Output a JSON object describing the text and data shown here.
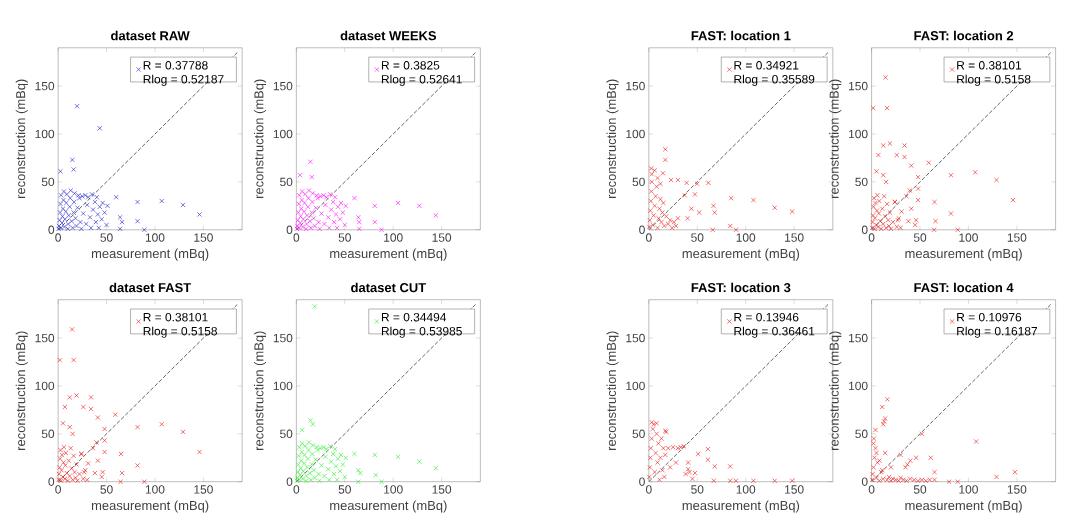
{
  "chart_data": [
    {
      "type": "scatter",
      "title": "dataset RAW",
      "xlabel": "measurement (mBq)",
      "ylabel": "reconstruction (mBq)",
      "xlim": [
        0,
        190
      ],
      "ylim": [
        0,
        190
      ],
      "xticks": [
        0,
        50,
        100,
        150
      ],
      "yticks": [
        0,
        50,
        100,
        150
      ],
      "legend": "top right",
      "series": [
        {
          "name": "R = 0.37788 Rlog = 0.52187",
          "color": "#1a1acc",
          "marker": "cross",
          "x": [
            0.5,
            1,
            1.5,
            2,
            2.5,
            3,
            3,
            4,
            4.5,
            5,
            5.5,
            6,
            6.5,
            7,
            8,
            8.5,
            9,
            10,
            10.5,
            11,
            12,
            12.5,
            13,
            14,
            15,
            16,
            16.5,
            17,
            18,
            19,
            20,
            21,
            22,
            23,
            24,
            25,
            26,
            28,
            29,
            30,
            31,
            33,
            34,
            35,
            36,
            38,
            39,
            40,
            41,
            42,
            43,
            45,
            46,
            48,
            50,
            51,
            2.4,
            14.7,
            16,
            19.6,
            43,
            60,
            64,
            64,
            66,
            82,
            82,
            89,
            107,
            129,
            146
          ],
          "values": [
            1,
            4,
            10,
            18,
            27,
            36,
            2,
            7,
            14,
            22,
            31,
            40,
            3,
            11,
            19,
            28,
            37,
            1,
            6,
            15,
            24,
            33,
            41,
            9,
            2,
            18,
            29,
            38,
            12,
            4,
            23,
            36,
            33,
            8,
            1,
            35,
            17,
            36,
            6,
            26,
            34,
            13,
            2,
            37,
            21,
            29,
            8,
            34,
            16,
            2,
            24,
            11,
            28,
            18,
            5,
            25,
            61,
            73,
            63,
            129,
            106,
            34,
            13,
            1,
            8,
            29,
            9,
            0,
            30,
            26,
            16
          ]
        },
        {
          "type": "line",
          "color": "#404040",
          "line_style": "dashed",
          "x": [
            0,
            185
          ],
          "values": [
            0,
            185
          ]
        }
      ]
    },
    {
      "type": "scatter",
      "title": "dataset WEEKS",
      "xlabel": "measurement (mBq)",
      "ylabel": "reconstruction (mBq)",
      "xlim": [
        0,
        190
      ],
      "ylim": [
        0,
        190
      ],
      "xticks": [
        0,
        50,
        100,
        150
      ],
      "yticks": [
        0,
        50,
        100,
        150
      ],
      "legend": "top right",
      "series": [
        {
          "name": "R = 0.3825 Rlog = 0.52641",
          "color": "#ff00ff",
          "marker": "cross",
          "x": [
            0.5,
            1,
            1.5,
            2,
            2.5,
            3,
            3,
            4,
            4.5,
            5,
            5.5,
            6,
            6.5,
            7,
            8,
            8.5,
            9,
            10,
            10.5,
            11,
            12,
            12.5,
            13,
            14,
            15,
            16,
            16.5,
            17,
            18,
            19,
            20,
            21,
            22,
            23,
            24,
            25,
            26,
            28,
            29,
            30,
            31,
            33,
            34,
            35,
            36,
            38,
            39,
            40,
            41,
            42,
            43,
            45,
            46,
            48,
            50,
            51,
            3.7,
            14.5,
            16,
            60,
            64,
            65,
            65,
            81,
            81,
            88,
            105,
            127,
            144
          ],
          "values": [
            1,
            4,
            10,
            18,
            27,
            36,
            2,
            7,
            14,
            22,
            31,
            40,
            3,
            11,
            19,
            28,
            37,
            1,
            6,
            15,
            24,
            33,
            41,
            9,
            2,
            18,
            29,
            38,
            12,
            4,
            23,
            36,
            33,
            8,
            1,
            35,
            17,
            36,
            6,
            26,
            34,
            13,
            2,
            37,
            21,
            29,
            8,
            34,
            16,
            2,
            24,
            11,
            28,
            18,
            5,
            25,
            57,
            71,
            55,
            33,
            13,
            8,
            1,
            25,
            8,
            0,
            28,
            25,
            15
          ]
        },
        {
          "type": "line",
          "color": "#404040",
          "line_style": "dashed",
          "x": [
            0,
            185
          ],
          "values": [
            0,
            185
          ]
        }
      ]
    },
    {
      "type": "scatter",
      "title": "FAST: location 1",
      "xlabel": "measurement (mBq)",
      "ylabel": "reconstruction (mBq)",
      "xlim": [
        0,
        190
      ],
      "ylim": [
        0,
        190
      ],
      "xticks": [
        0,
        50,
        100,
        150
      ],
      "yticks": [
        0,
        50,
        100,
        150
      ],
      "legend": "top right",
      "series": [
        {
          "name": "R = 0.34921 Rlog = 0.35589",
          "color": "#ee1111",
          "marker": "cross",
          "x": [
            0.5,
            1,
            1.5,
            2,
            2.5,
            3,
            4,
            5,
            6,
            7,
            8,
            9,
            10,
            11,
            12,
            13,
            14,
            15,
            16,
            18,
            20,
            22,
            24,
            26,
            28,
            30,
            3,
            6,
            9,
            12,
            17,
            17,
            2.4,
            14.6,
            23,
            30,
            39,
            50,
            61.5,
            85,
            108,
            130,
            148,
            66.7,
            68,
            84,
            90,
            66,
            47.6,
            37,
            44,
            52,
            40
          ],
          "values": [
            3,
            10,
            20,
            30,
            40,
            50,
            5,
            15,
            25,
            35,
            45,
            2,
            12,
            22,
            32,
            8,
            18,
            28,
            4,
            14,
            6,
            10,
            2,
            8,
            4,
            12,
            58,
            62,
            54,
            48,
            84,
            73,
            64,
            59,
            52,
            52,
            49,
            48,
            49,
            33,
            31,
            23,
            19,
            25,
            18,
            4,
            0,
            0,
            37,
            36,
            22,
            18,
            12
          ]
        },
        {
          "type": "line",
          "color": "#404040",
          "line_style": "dashed",
          "x": [
            0,
            185
          ],
          "values": [
            0,
            185
          ]
        }
      ]
    },
    {
      "type": "scatter",
      "title": "FAST: location 2",
      "xlabel": "measurement (mBq)",
      "ylabel": "reconstruction (mBq)",
      "xlim": [
        0,
        190
      ],
      "ylim": [
        0,
        190
      ],
      "xticks": [
        0,
        50,
        100,
        150
      ],
      "yticks": [
        0,
        50,
        100,
        150
      ],
      "legend": "top right",
      "series": [
        {
          "name": "R = 0.38101 Rlog = 0.5158",
          "color": "#ee1111",
          "marker": "cross",
          "x": [
            0.5,
            1,
            1.5,
            2,
            2.5,
            3,
            3.5,
            4,
            5,
            5.5,
            6,
            7,
            7.5,
            8,
            9,
            10,
            11,
            12,
            13,
            14,
            15,
            16,
            17,
            18,
            19,
            20,
            22,
            24,
            26,
            28,
            30,
            1.7,
            16,
            14.4,
            7,
            12,
            19,
            26,
            34,
            34,
            41,
            12,
            5,
            15,
            48,
            48,
            39.5,
            48,
            41,
            31,
            24,
            27,
            46,
            38,
            59,
            82,
            107,
            129,
            146,
            82,
            89,
            64.5,
            66,
            65,
            36,
            45
          ],
          "values": [
            2,
            8,
            15,
            24,
            33,
            1,
            12,
            28,
            5,
            20,
            36,
            3,
            17,
            30,
            9,
            1,
            22,
            6,
            35,
            14,
            2,
            27,
            10,
            4,
            18,
            1,
            8,
            29,
            3,
            12,
            2,
            127,
            127,
            159,
            78,
            88,
            90,
            78,
            88,
            76,
            67,
            57,
            61,
            50,
            55,
            43,
            41,
            31,
            22,
            19,
            29,
            10,
            10,
            9,
            70,
            57,
            60,
            52,
            31,
            17,
            0,
            0,
            9,
            29,
            35,
            5
          ]
        },
        {
          "type": "line",
          "color": "#404040",
          "line_style": "dashed",
          "x": [
            0,
            185
          ],
          "values": [
            0,
            185
          ]
        }
      ]
    },
    {
      "type": "scatter",
      "title": "dataset FAST",
      "xlabel": "measurement (mBq)",
      "ylabel": "reconstruction (mBq)",
      "xlim": [
        0,
        190
      ],
      "ylim": [
        0,
        190
      ],
      "xticks": [
        0,
        50,
        100,
        150
      ],
      "yticks": [
        0,
        50,
        100,
        150
      ],
      "legend": "top right",
      "series": [
        {
          "name": "R = 0.38101 Rlog = 0.5158",
          "color": "#ee1111",
          "marker": "cross",
          "x": [
            0.5,
            1,
            1.5,
            2,
            2.5,
            3,
            3.5,
            4,
            5,
            5.5,
            6,
            7,
            7.5,
            8,
            9,
            10,
            11,
            12,
            13,
            14,
            15,
            16,
            17,
            18,
            19,
            20,
            22,
            24,
            26,
            28,
            30,
            1.7,
            16,
            14.4,
            7,
            12,
            19,
            26,
            34,
            34,
            41,
            12,
            5,
            15,
            48,
            48,
            39.5,
            48,
            41,
            31,
            24,
            27,
            46,
            38,
            59,
            82,
            107,
            129,
            146,
            82,
            89,
            64.5,
            66,
            65,
            36,
            45
          ],
          "values": [
            2,
            8,
            15,
            24,
            33,
            1,
            12,
            28,
            5,
            20,
            36,
            3,
            17,
            30,
            9,
            1,
            22,
            6,
            35,
            14,
            2,
            27,
            10,
            4,
            18,
            1,
            8,
            29,
            3,
            12,
            2,
            127,
            127,
            159,
            78,
            88,
            90,
            78,
            88,
            76,
            67,
            57,
            61,
            50,
            55,
            43,
            41,
            31,
            22,
            19,
            29,
            10,
            10,
            9,
            70,
            57,
            60,
            52,
            31,
            17,
            0,
            0,
            9,
            29,
            35,
            5
          ]
        },
        {
          "type": "line",
          "color": "#404040",
          "line_style": "dashed",
          "x": [
            0,
            185
          ],
          "values": [
            0,
            185
          ]
        }
      ]
    },
    {
      "type": "scatter",
      "title": "dataset CUT",
      "xlabel": "measurement (mBq)",
      "ylabel": "reconstruction (mBq)",
      "xlim": [
        0,
        190
      ],
      "ylim": [
        0,
        190
      ],
      "xticks": [
        0,
        50,
        100,
        150
      ],
      "yticks": [
        0,
        50,
        100,
        150
      ],
      "legend": "top right",
      "series": [
        {
          "name": "R = 0.34494 Rlog = 0.53985",
          "color": "#22ee22",
          "marker": "cross",
          "x": [
            0.5,
            1,
            1.5,
            2,
            2.5,
            3,
            3,
            4,
            4.5,
            5,
            5.5,
            6,
            6.5,
            7,
            8,
            8.5,
            9,
            10,
            10.5,
            11,
            12,
            12.5,
            13,
            14,
            15,
            16,
            16.5,
            17,
            18,
            19,
            20,
            21,
            22,
            23,
            24,
            25,
            26,
            28,
            29,
            30,
            31,
            33,
            34,
            35,
            36,
            38,
            39,
            40,
            41,
            42,
            43,
            45,
            46,
            48,
            50,
            51,
            6,
            14.5,
            17,
            19,
            60,
            64,
            64,
            66,
            82,
            81,
            88,
            105,
            127,
            144
          ],
          "values": [
            1,
            4,
            10,
            18,
            27,
            36,
            2,
            7,
            14,
            22,
            31,
            40,
            3,
            11,
            19,
            28,
            37,
            1,
            6,
            15,
            24,
            33,
            41,
            9,
            2,
            18,
            29,
            38,
            12,
            4,
            23,
            36,
            33,
            8,
            1,
            35,
            17,
            36,
            6,
            26,
            34,
            13,
            2,
            37,
            21,
            29,
            8,
            34,
            16,
            2,
            24,
            11,
            28,
            18,
            5,
            25,
            54,
            64,
            60,
            183,
            29,
            12,
            0,
            9,
            7,
            28,
            0,
            26,
            21,
            14
          ]
        },
        {
          "type": "line",
          "color": "#404040",
          "line_style": "dashed",
          "x": [
            0,
            185
          ],
          "values": [
            0,
            185
          ]
        }
      ]
    },
    {
      "type": "scatter",
      "title": "FAST: location 3",
      "xlabel": "measurement (mBq)",
      "ylabel": "reconstruction (mBq)",
      "xlim": [
        0,
        190
      ],
      "ylim": [
        0,
        190
      ],
      "xticks": [
        0,
        50,
        100,
        150
      ],
      "yticks": [
        0,
        50,
        100,
        150
      ],
      "legend": "top right",
      "series": [
        {
          "name": "R = 0.13946 Rlog = 0.36461",
          "color": "#ee1111",
          "marker": "cross",
          "x": [
            0.5,
            1,
            1.5,
            2,
            3,
            4,
            5,
            6,
            7,
            8,
            9,
            10,
            11,
            12,
            13,
            14,
            15,
            16,
            17,
            18,
            20,
            22,
            25,
            28,
            30,
            33,
            36,
            38,
            42,
            45,
            17,
            51,
            61,
            61,
            68,
            84,
            84,
            90,
            108,
            130,
            148,
            67,
            40.6,
            40.6,
            47.6,
            3,
            8
          ],
          "values": [
            5,
            15,
            25,
            35,
            45,
            55,
            60,
            10,
            30,
            50,
            20,
            40,
            2,
            25,
            45,
            12,
            35,
            5,
            28,
            52,
            35,
            15,
            36,
            20,
            35,
            36,
            37,
            8,
            10,
            3,
            53,
            29,
            34,
            23,
            16,
            16,
            1,
            1,
            1,
            1,
            1,
            1,
            20,
            13,
            9,
            62,
            61
          ]
        },
        {
          "type": "line",
          "color": "#404040",
          "line_style": "dashed",
          "x": [
            0,
            185
          ],
          "values": [
            0,
            185
          ]
        }
      ]
    },
    {
      "type": "scatter",
      "title": "FAST: location 4",
      "xlabel": "measurement (mBq)",
      "ylabel": "reconstruction (mBq)",
      "xlim": [
        0,
        190
      ],
      "ylim": [
        0,
        190
      ],
      "xticks": [
        0,
        50,
        100,
        150
      ],
      "yticks": [
        0,
        50,
        100,
        150
      ],
      "legend": "top right",
      "series": [
        {
          "name": "R = 0.10976 Rlog = 0.16187",
          "color": "#ee1111",
          "marker": "cross",
          "x": [
            0.5,
            1,
            2,
            3,
            4,
            5,
            6,
            8,
            10,
            12,
            14,
            16,
            18,
            20,
            22,
            25,
            28,
            30,
            33,
            36,
            40,
            44,
            48,
            52,
            56,
            60,
            2,
            5,
            8,
            11,
            16.3,
            11,
            4,
            2.4,
            13,
            14,
            12,
            52,
            108,
            129,
            148,
            61,
            65,
            65,
            80,
            89,
            46,
            37,
            35,
            30,
            40,
            20
          ],
          "values": [
            2,
            8,
            15,
            25,
            35,
            4,
            20,
            1,
            10,
            3,
            30,
            2,
            5,
            1,
            3,
            2,
            1,
            4,
            2,
            1,
            3,
            2,
            1,
            2,
            1,
            2,
            40,
            30,
            22,
            12,
            86,
            78,
            54,
            45,
            63,
            66,
            60,
            50,
            42,
            5,
            10,
            25,
            10,
            2,
            0,
            0,
            25,
            18,
            15,
            28,
            22,
            15
          ]
        },
        {
          "type": "line",
          "color": "#404040",
          "line_style": "dashed",
          "x": [
            0,
            185
          ],
          "values": [
            0,
            185
          ]
        }
      ]
    }
  ]
}
